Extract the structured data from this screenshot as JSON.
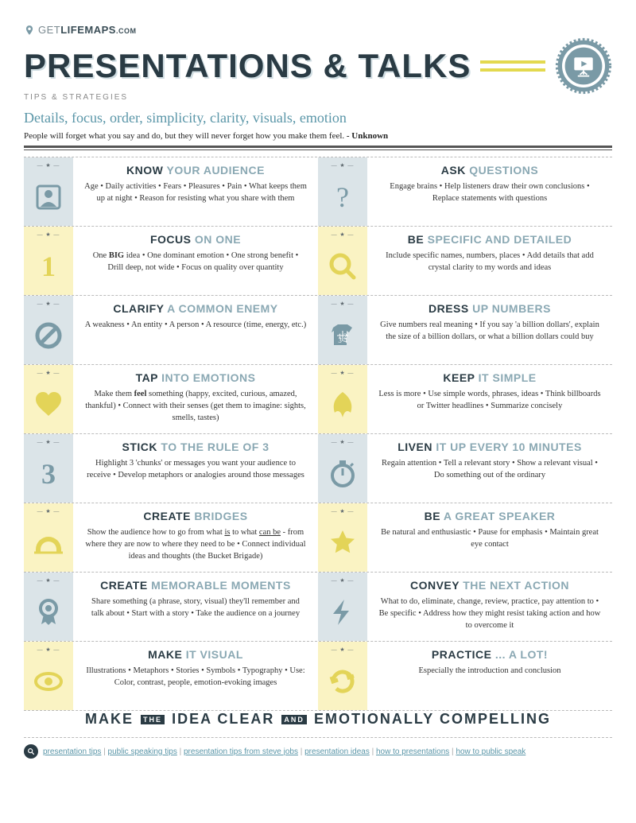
{
  "colors": {
    "dark": "#2a3b44",
    "teal": "#7a9aa6",
    "yellow": "#e3d458",
    "blue_bg": "#dbe4e8",
    "yellow_bg": "#faf3c3",
    "accent_line": "#e3d94f"
  },
  "logo": {
    "thin": "GET",
    "bold": "LIFEMAPS",
    "dot": ".COM"
  },
  "title": "PRESENTATIONS & TALKS",
  "subtitle": "TIPS & STRATEGIES",
  "cursive": "Details, focus, order, simplicity, clarity, visuals, emotion",
  "quote_text": "People will forget what you say and do, but they will never forget how you make them feel. ",
  "quote_attr": "- Unknown",
  "star_slot": "— ★ —",
  "tips": [
    [
      {
        "icon": "person",
        "bg": "blue",
        "t1": "KNOW",
        "t2": "YOUR AUDIENCE",
        "body": "Age • Daily activities • Fears • Pleasures • Pain • What keeps them up at night • Reason for resisting what you share with them"
      },
      {
        "icon": "question",
        "bg": "blue",
        "t1": "ASK",
        "t2": "QUESTIONS",
        "body": "Engage brains • Help listeners draw their own conclusions • Replace statements with questions"
      }
    ],
    [
      {
        "icon": "one",
        "bg": "yellow",
        "t1": "FOCUS",
        "t2": "ON ONE",
        "body": "One <b>BIG</b> idea • One dominant emotion • One strong benefit • Drill deep, not wide • Focus on quality over quantity"
      },
      {
        "icon": "magnify",
        "bg": "yellow",
        "t1": "BE",
        "t2": "SPECIFIC AND DETAILED",
        "body": "Include specific names, numbers, places • Add details that add crystal clarity to my words and ideas"
      }
    ],
    [
      {
        "icon": "nosign",
        "bg": "blue",
        "t1": "CLARIFY",
        "t2": "A COMMON ENEMY",
        "body": "A weakness • An entity • A person • A resource (time, energy, etc.)"
      },
      {
        "icon": "shirt",
        "bg": "blue",
        "t1": "DRESS",
        "t2": "UP NUMBERS",
        "body": "Give numbers real meaning • If you say 'a billion dollars', explain the size of a billion dollars, or what a billion dollars could buy"
      }
    ],
    [
      {
        "icon": "heart",
        "bg": "yellow",
        "t1": "TAP",
        "t2": "INTO EMOTIONS",
        "body": "Make them <b>feel</b> something (happy, excited, curious, amazed, thankful) • Connect with their senses (get them to imagine: sights, smells, tastes)"
      },
      {
        "icon": "leaf",
        "bg": "yellow",
        "t1": "KEEP",
        "t2": "IT SIMPLE",
        "body": "Less is more • Use simple words, phrases, ideas • Think billboards or Twitter headlines • Summarize concisely"
      }
    ],
    [
      {
        "icon": "three",
        "bg": "blue",
        "t1": "STICK",
        "t2": "TO THE RULE OF 3",
        "body": "Highlight 3 'chunks' or messages you want your audience to receive • Develop metaphors or analogies around those messages"
      },
      {
        "icon": "stopwatch",
        "bg": "blue",
        "t1": "LIVEN",
        "t2": "IT UP EVERY 10 MINUTES",
        "body": "Regain attention • Tell a relevant story • Show a relevant visual • Do something out of the ordinary"
      }
    ],
    [
      {
        "icon": "bridge",
        "bg": "yellow",
        "t1": "CREATE",
        "t2": "BRIDGES",
        "body": "Show the audience how to go from what <u>is</u> to what <u>can be</u> - from where they are now to where they need to be • Connect individual ideas and thoughts (the Bucket Brigade)"
      },
      {
        "icon": "star",
        "bg": "yellow",
        "t1": "BE",
        "t2": "A GREAT SPEAKER",
        "body": "Be natural and enthusiastic • Pause for emphasis • Maintain great eye contact"
      }
    ],
    [
      {
        "icon": "ribbon",
        "bg": "blue",
        "t1": "CREATE",
        "t2": "MEMORABLE MOMENTS",
        "body": "Share something (a phrase, story, visual) they'll remember and talk about • Start with a story • Take the audience on a journey"
      },
      {
        "icon": "bolt",
        "bg": "blue",
        "t1": "CONVEY",
        "t2": "THE NEXT ACTION",
        "body": "What to do, eliminate, change, review, practice, pay attention to • Be specific • Address how they might resist taking action and how to overcome it"
      }
    ],
    [
      {
        "icon": "eye",
        "bg": "yellow",
        "t1": "MAKE",
        "t2": "IT VISUAL",
        "body": "Illustrations • Metaphors • Stories • Symbols • Typography • Use: Color, contrast, people, emotion-evoking images"
      },
      {
        "icon": "cycle",
        "bg": "yellow",
        "t1": "PRACTICE",
        "t2": "... A LOT!",
        "body": "Especially the introduction and conclusion"
      }
    ]
  ],
  "footer": {
    "p1": "MAKE",
    "s1": "THE",
    "p2": "IDEA CLEAR",
    "s2": "AND",
    "p3": "EMOTIONALLY COMPELLING"
  },
  "links": [
    "presentation tips",
    "public speaking tips",
    "presentation tips from steve jobs",
    "presentation ideas",
    "how to presentations",
    "how to public speak"
  ]
}
